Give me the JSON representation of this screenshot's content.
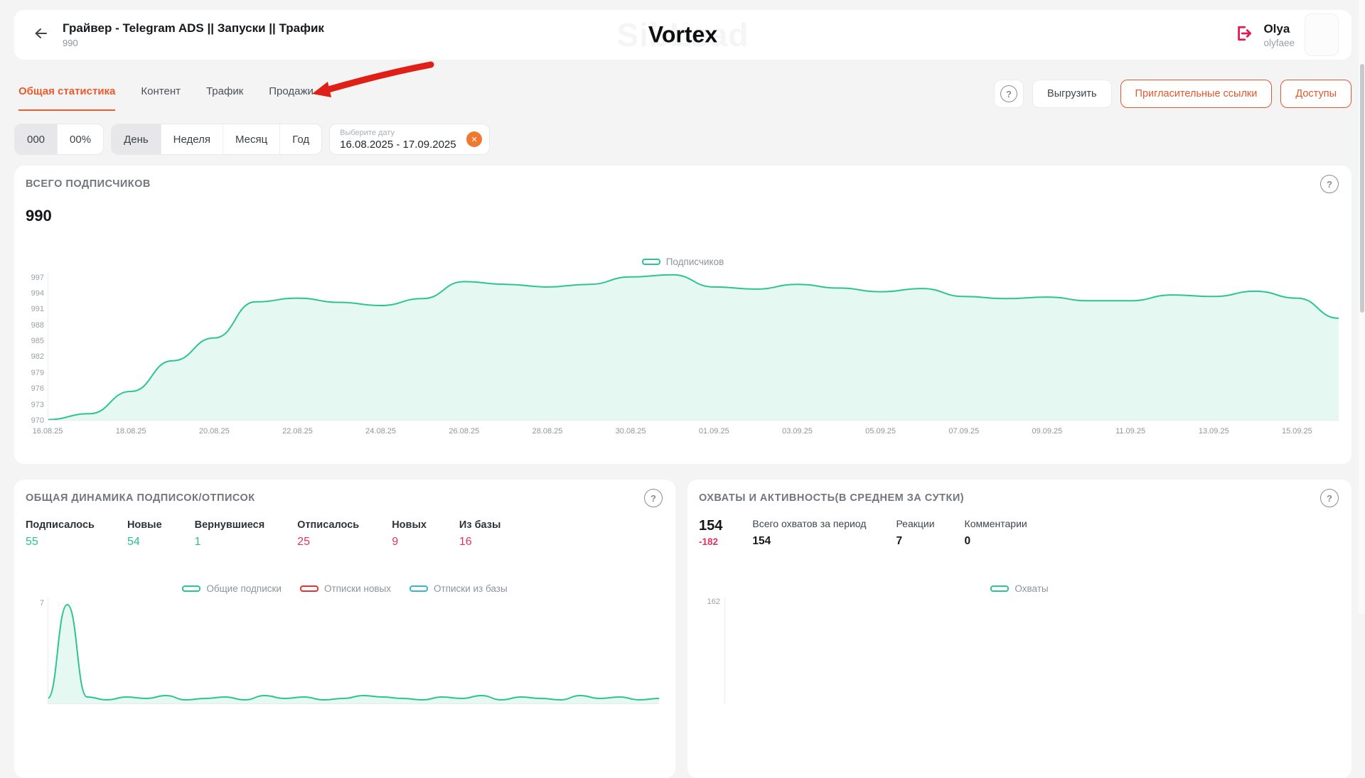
{
  "header": {
    "title": "Грайвер - Telegram ADS || Запуски || Трафик",
    "subtitle": "990",
    "watermark_back": "SibLead",
    "watermark_front": "Vortex",
    "user": {
      "name": "Olya",
      "handle": "olyfaee"
    }
  },
  "tabs": [
    {
      "label": "Общая статистика",
      "active": true
    },
    {
      "label": "Контент",
      "active": false
    },
    {
      "label": "Трафик",
      "active": false
    },
    {
      "label": "Продажи",
      "active": false
    }
  ],
  "toolbar": {
    "help": "?",
    "export": "Выгрузить",
    "invite_links": "Пригласительные ссылки",
    "access": "Доступы"
  },
  "filters": {
    "count": "000",
    "percent": "00%",
    "periods": [
      "День",
      "Неделя",
      "Месяц",
      "Год"
    ],
    "active_period": "День",
    "date_placeholder": "Выберите дату",
    "date_value": "16.08.2025 - 17.09.2025",
    "clear": "✕"
  },
  "subscribers_card": {
    "title": "ВСЕГО ПОДПИСЧИКОВ",
    "value": "990",
    "help": "?",
    "legend": "Подписчиков"
  },
  "dynamics_card": {
    "title": "ОБЩАЯ ДИНАМИКА ПОДПИСОК/ОТПИСОК",
    "help": "?",
    "stats": [
      {
        "label": "Подписалось",
        "value": "55",
        "tone": "green"
      },
      {
        "label": "Новые",
        "value": "54",
        "tone": "green"
      },
      {
        "label": "Вернувшиеся",
        "value": "1",
        "tone": "green"
      },
      {
        "label": "Отписалось",
        "value": "25",
        "tone": "red"
      },
      {
        "label": "Новых",
        "value": "9",
        "tone": "red"
      },
      {
        "label": "Из базы",
        "value": "16",
        "tone": "red"
      }
    ],
    "legend": [
      "Общие подписки",
      "Отписки новых",
      "Отписки из базы"
    ],
    "axis_tick": "7"
  },
  "reach_card": {
    "title": "ОХВАТЫ И АКТИВНОСТЬ(В СРЕДНЕМ ЗА СУТКИ)",
    "help": "?",
    "main_value": "154",
    "main_delta": "-182",
    "stats": [
      {
        "label": "Всего охватов за период",
        "value": "154"
      },
      {
        "label": "Реакции",
        "value": "7"
      },
      {
        "label": "Комментарии",
        "value": "0"
      }
    ],
    "legend": "Охваты",
    "axis_tick": "162"
  },
  "chart_data": [
    {
      "id": "subscribers_total",
      "type": "area",
      "title": "ВСЕГО ПОДПИСЧИКОВ",
      "legend": [
        "Подписчиков"
      ],
      "x": [
        "16.08.25",
        "17.08.25",
        "18.08.25",
        "19.08.25",
        "20.08.25",
        "21.08.25",
        "22.08.25",
        "23.08.25",
        "24.08.25",
        "25.08.25",
        "26.08.25",
        "27.08.25",
        "28.08.25",
        "29.08.25",
        "30.08.25",
        "31.08.25",
        "01.09.25",
        "02.09.25",
        "03.09.25",
        "04.09.25",
        "05.09.25",
        "06.09.25",
        "07.09.25",
        "08.09.25",
        "09.09.25",
        "10.09.25",
        "11.09.25",
        "12.09.25",
        "13.09.25",
        "14.09.25",
        "15.09.25",
        "16.09.25"
      ],
      "x_tick_labels": [
        "16.08.25",
        "18.08.25",
        "20.08.25",
        "22.08.25",
        "24.08.25",
        "26.08.25",
        "28.08.25",
        "30.08.25",
        "01.09.25",
        "03.09.25",
        "05.09.25",
        "07.09.25",
        "09.09.25",
        "11.09.25",
        "13.09.25",
        "15.09.25"
      ],
      "values": [
        970.2,
        971.3,
        975.5,
        981.3,
        985.6,
        992.4,
        993.1,
        992.3,
        991.7,
        993,
        996.2,
        995.7,
        995.2,
        995.7,
        997.1,
        997.5,
        995.2,
        994.8,
        995.7,
        995,
        994.3,
        994.9,
        993.4,
        993,
        993.3,
        992.6,
        992.6,
        993.7,
        993.4,
        994.4,
        993.1,
        989.3
      ],
      "values_estimated": true,
      "yticks": [
        997,
        994,
        991,
        988,
        985,
        982,
        979,
        976,
        973,
        970
      ],
      "ylim": [
        970,
        998
      ],
      "grid": false,
      "legend_position": "top-center",
      "line_color": "#2cc493",
      "fill_color": "rgba(44,196,147,0.12)"
    },
    {
      "id": "subscribe_unsubscribe_dynamics",
      "type": "area",
      "partially_visible": true,
      "visible_ytick": 7,
      "series": [
        {
          "name": "Общие подписки",
          "color": "#2cc493",
          "values": [
            0.4,
            7,
            0.5,
            0.3,
            0.5,
            0.4,
            0.6,
            0.3,
            0.4,
            0.5,
            0.3,
            0.6,
            0.4,
            0.5,
            0.3,
            0.4,
            0.6,
            0.5,
            0.4,
            0.3,
            0.5,
            0.4,
            0.6,
            0.3,
            0.5,
            0.4,
            0.3,
            0.6,
            0.4,
            0.5,
            0.3,
            0.4
          ],
          "values_estimated": true
        },
        {
          "name": "Отписки новых",
          "color": "#e23434"
        },
        {
          "name": "Отписки из базы",
          "color": "#38b6cf"
        }
      ],
      "note": "chart clipped by viewport bottom; only top of first spike (7) visible"
    },
    {
      "id": "reach_daily",
      "type": "area",
      "partially_visible": true,
      "visible_ytick": 162,
      "series": [
        {
          "name": "Охваты",
          "color": "#2cc493"
        }
      ],
      "note": "chart clipped by viewport bottom; only top axis tick visible"
    }
  ],
  "colors": {
    "page_bg": "#f4f4f5",
    "accent_orange": "#ee5a29",
    "button_outline_orange": "#e4572e",
    "logout_pink": "#e41a55",
    "annotation_red": "#e01f17",
    "chart_green": "#2cc493",
    "stat_green": "#2fbf8f",
    "stat_red": "#e4345e",
    "legend_red": "#e23434",
    "legend_cyan": "#38b6cf",
    "date_clear_orange": "#f1792f"
  }
}
